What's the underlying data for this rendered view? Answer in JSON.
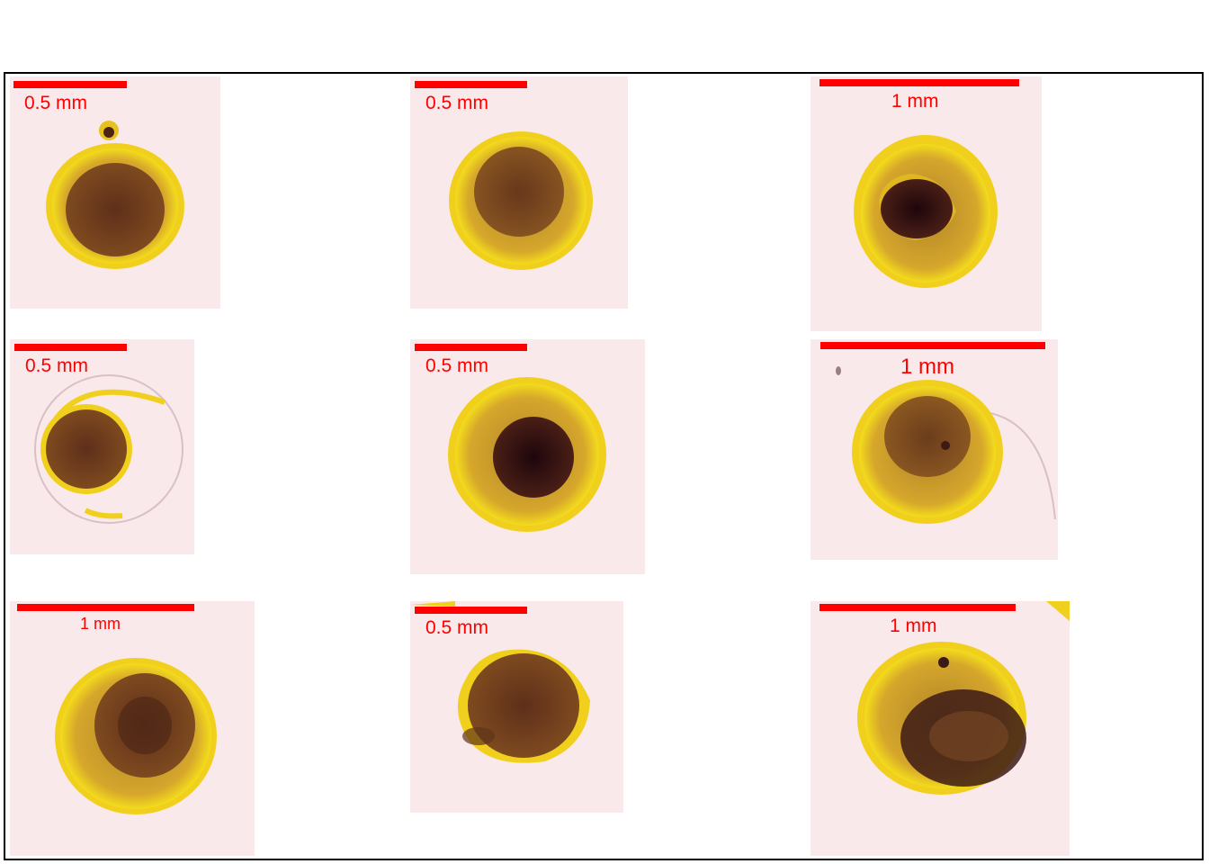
{
  "colors": {
    "scalebar": "#ff0000",
    "panel_background": "#f9e9ea",
    "rim_yellow": "#f2d21a",
    "shell_amber": "#c99a27",
    "core_brown": "#6a3a1c",
    "core_dark": "#2a0c10"
  },
  "panels": [
    {
      "id": "r1c1",
      "scale_label": "0.5 mm"
    },
    {
      "id": "r1c2",
      "scale_label": "0.5 mm"
    },
    {
      "id": "r1c3",
      "scale_label": "1 mm"
    },
    {
      "id": "r2c1",
      "scale_label": "0.5 mm"
    },
    {
      "id": "r2c2",
      "scale_label": "0.5 mm"
    },
    {
      "id": "r2c3",
      "scale_label": "1 mm"
    },
    {
      "id": "r3c1",
      "scale_label": "1 mm"
    },
    {
      "id": "r3c2",
      "scale_label": "0.5 mm"
    },
    {
      "id": "r3c3",
      "scale_label": "1 mm"
    }
  ]
}
